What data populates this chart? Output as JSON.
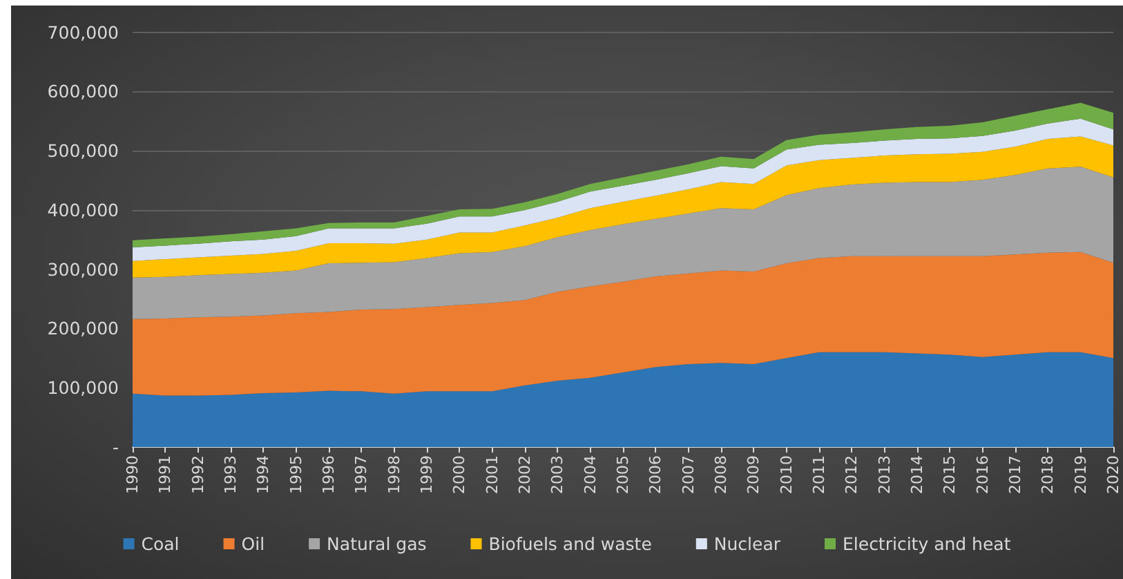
{
  "chart_data": {
    "type": "area",
    "stacked": true,
    "categories": [
      "1990",
      "1991",
      "1992",
      "1993",
      "1994",
      "1995",
      "1996",
      "1997",
      "1998",
      "1999",
      "2000",
      "2001",
      "2002",
      "2003",
      "2004",
      "2005",
      "2006",
      "2007",
      "2008",
      "2009",
      "2010",
      "2011",
      "2012",
      "2013",
      "2014",
      "2015",
      "2016",
      "2017",
      "2018",
      "2019",
      "2020"
    ],
    "series": [
      {
        "name": "Coal",
        "color": "#2e75b6",
        "values": [
          90000,
          87000,
          87000,
          88000,
          91000,
          92000,
          95000,
          94000,
          90000,
          94000,
          94000,
          94000,
          104000,
          112000,
          117000,
          126000,
          135000,
          140000,
          142000,
          140000,
          150000,
          160000,
          160000,
          160000,
          158000,
          156000,
          152000,
          156000,
          160000,
          160000,
          150000
        ]
      },
      {
        "name": "Oil",
        "color": "#ed7d31",
        "values": [
          126000,
          130000,
          132000,
          132000,
          131000,
          134000,
          133000,
          138000,
          143000,
          142000,
          146000,
          149000,
          144000,
          150000,
          154000,
          153000,
          153000,
          153000,
          156000,
          156000,
          160000,
          159000,
          162000,
          162000,
          164000,
          166000,
          170000,
          169000,
          168000,
          169000,
          161000
        ]
      },
      {
        "name": "Natural gas",
        "color": "#a5a5a5",
        "values": [
          70000,
          70000,
          71000,
          72000,
          72000,
          72000,
          82000,
          79000,
          79000,
          83000,
          87000,
          86000,
          91000,
          92000,
          95000,
          97000,
          97000,
          101000,
          105000,
          105000,
          115000,
          118000,
          121000,
          124000,
          125000,
          125000,
          129000,
          134000,
          142000,
          144000,
          144000
        ]
      },
      {
        "name": "Biofuels and waste",
        "color": "#ffc000",
        "values": [
          28000,
          30000,
          30000,
          31000,
          32000,
          33000,
          34000,
          33000,
          31000,
          31000,
          35000,
          33000,
          35000,
          33000,
          37000,
          38000,
          39000,
          41000,
          44000,
          43000,
          50000,
          47000,
          45000,
          46000,
          47000,
          48000,
          47000,
          48000,
          50000,
          51000,
          54000
        ]
      },
      {
        "name": "Nuclear",
        "color": "#dae3f3",
        "values": [
          23000,
          23000,
          23000,
          24000,
          24000,
          25000,
          25000,
          25000,
          26000,
          27000,
          27000,
          27000,
          26000,
          27000,
          28000,
          27000,
          27000,
          27000,
          27000,
          26000,
          27000,
          26000,
          25000,
          25000,
          26000,
          26000,
          27000,
          27000,
          26000,
          30000,
          27000
        ]
      },
      {
        "name": "Electricity and heat",
        "color": "#70ad47",
        "values": [
          12000,
          12000,
          12000,
          12000,
          14000,
          13000,
          9000,
          10000,
          10000,
          13000,
          12000,
          13000,
          13000,
          13000,
          13000,
          14000,
          15000,
          15000,
          16000,
          16000,
          16000,
          17000,
          18000,
          19000,
          20000,
          21000,
          23000,
          25000,
          24000,
          27000,
          28000
        ]
      }
    ],
    "ylim": [
      0,
      700000
    ],
    "yticks": [
      {
        "value": 0,
        "label": "-"
      },
      {
        "value": 100000,
        "label": "100,000"
      },
      {
        "value": 200000,
        "label": "200,000"
      },
      {
        "value": 300000,
        "label": "300,000"
      },
      {
        "value": 400000,
        "label": "400,000"
      },
      {
        "value": 500000,
        "label": "500,000"
      },
      {
        "value": 600000,
        "label": "600,000"
      },
      {
        "value": 700000,
        "label": "700,000"
      }
    ],
    "grid": "y",
    "legend": "bottom"
  }
}
